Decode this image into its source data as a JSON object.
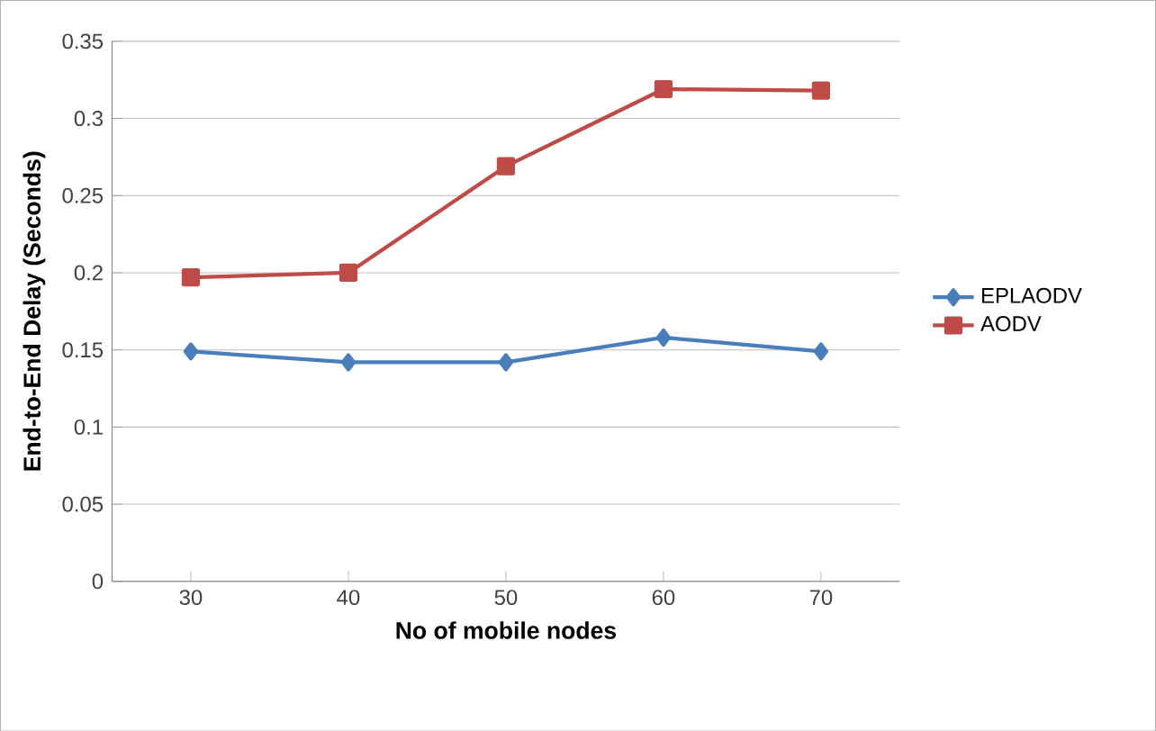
{
  "chart_data": {
    "type": "line",
    "xlabel": "No of mobile nodes",
    "ylabel": "End-to-End Delay (Seconds)",
    "categories": [
      "30",
      "40",
      "50",
      "60",
      "70"
    ],
    "series": [
      {
        "name": "EPLAODV",
        "color": "#4a7ebb",
        "marker": "diamond",
        "values": [
          0.149,
          0.142,
          0.142,
          0.158,
          0.149
        ]
      },
      {
        "name": "AODV",
        "color": "#be4b48",
        "marker": "square",
        "values": [
          0.197,
          0.2,
          0.269,
          0.319,
          0.318
        ]
      }
    ],
    "ylim": [
      0,
      0.35
    ],
    "yticks": [
      0,
      0.05,
      0.1,
      0.15,
      0.2,
      0.25,
      0.3,
      0.35
    ],
    "grid": "y",
    "legend": "right"
  }
}
